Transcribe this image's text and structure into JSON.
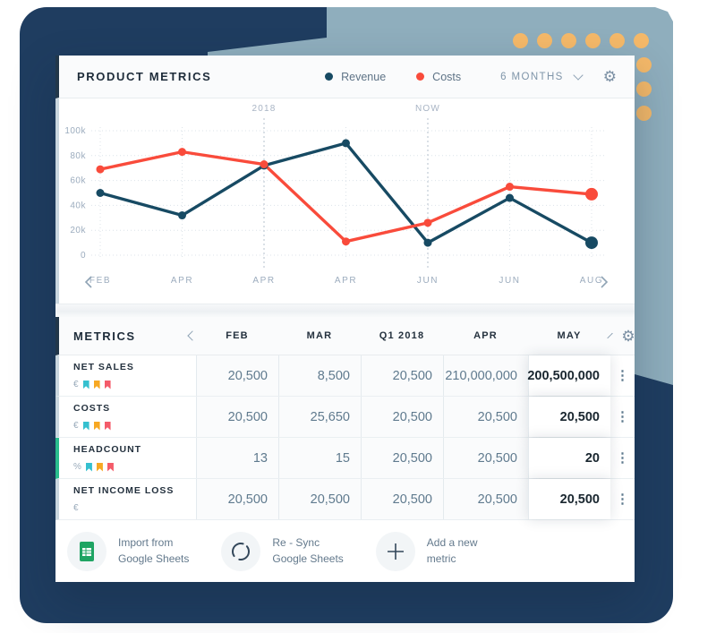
{
  "colors": {
    "background_navy": "#1F3D60",
    "background_blue_gray": "#8FAEBD",
    "ornament_orange": "#F5B969",
    "revenue_line": "#174A63",
    "costs_line": "#F94B3B",
    "green_row_accent": "#2ABE8D",
    "flag_teal": "#35C0CF",
    "flag_orange": "#F7A823",
    "flag_red": "#F45B69"
  },
  "chart_panel": {
    "title": "PRODUCT METRICS",
    "legend": [
      {
        "label": "Revenue",
        "color": "#174A63"
      },
      {
        "label": "Costs",
        "color": "#F94B3B"
      }
    ],
    "range_selector": "6 MONTHS"
  },
  "chart_data": {
    "type": "line",
    "categories": [
      "FEB",
      "APR",
      "APR",
      "APR",
      "JUN",
      "JUN",
      "AUG"
    ],
    "series": [
      {
        "name": "Revenue",
        "color": "#174A63",
        "values": [
          50000,
          32000,
          72000,
          90000,
          10000,
          46000,
          10000
        ]
      },
      {
        "name": "Costs",
        "color": "#F94B3B",
        "values": [
          69000,
          83000,
          73000,
          11000,
          26000,
          55000,
          49000
        ]
      }
    ],
    "yticks": [
      "100k",
      "80k",
      "60k",
      "40k",
      "20k",
      "0"
    ],
    "ylim": [
      0,
      100000
    ],
    "annotations": [
      {
        "label": "2018",
        "index": 2
      },
      {
        "label": "NOW",
        "index": 4
      }
    ],
    "grid": true,
    "legend_position": "top-right"
  },
  "table": {
    "title": "METRICS",
    "columns": [
      "FEB",
      "MAR",
      "Q1 2018",
      "APR",
      "MAY"
    ],
    "rows": [
      {
        "label": "NET SALES",
        "unit": "€",
        "values": [
          "20,500",
          "8,500",
          "20,500",
          "210,000,000",
          "200,500,000"
        ]
      },
      {
        "label": "COSTS",
        "unit": "€",
        "values": [
          "20,500",
          "25,650",
          "20,500",
          "20,500",
          "20,500"
        ]
      },
      {
        "label": "HEADCOUNT",
        "unit": "%",
        "values": [
          "13",
          "15",
          "20,500",
          "20,500",
          "20"
        ]
      },
      {
        "label": "NET INCOME LOSS",
        "unit": "€",
        "values": [
          "20,500",
          "20,500",
          "20,500",
          "20,500",
          "20,500"
        ]
      }
    ],
    "menu_glyph": "⋮"
  },
  "footer": {
    "actions": [
      {
        "icon": "google-sheets-icon",
        "line1": "Import from",
        "line2": "Google Sheets"
      },
      {
        "icon": "sync-icon",
        "line1": "Re - Sync",
        "line2": "Google Sheets"
      },
      {
        "icon": "plus-icon",
        "line1": "Add a new",
        "line2": "metric"
      }
    ]
  },
  "icons": {
    "settings": "⚙"
  }
}
